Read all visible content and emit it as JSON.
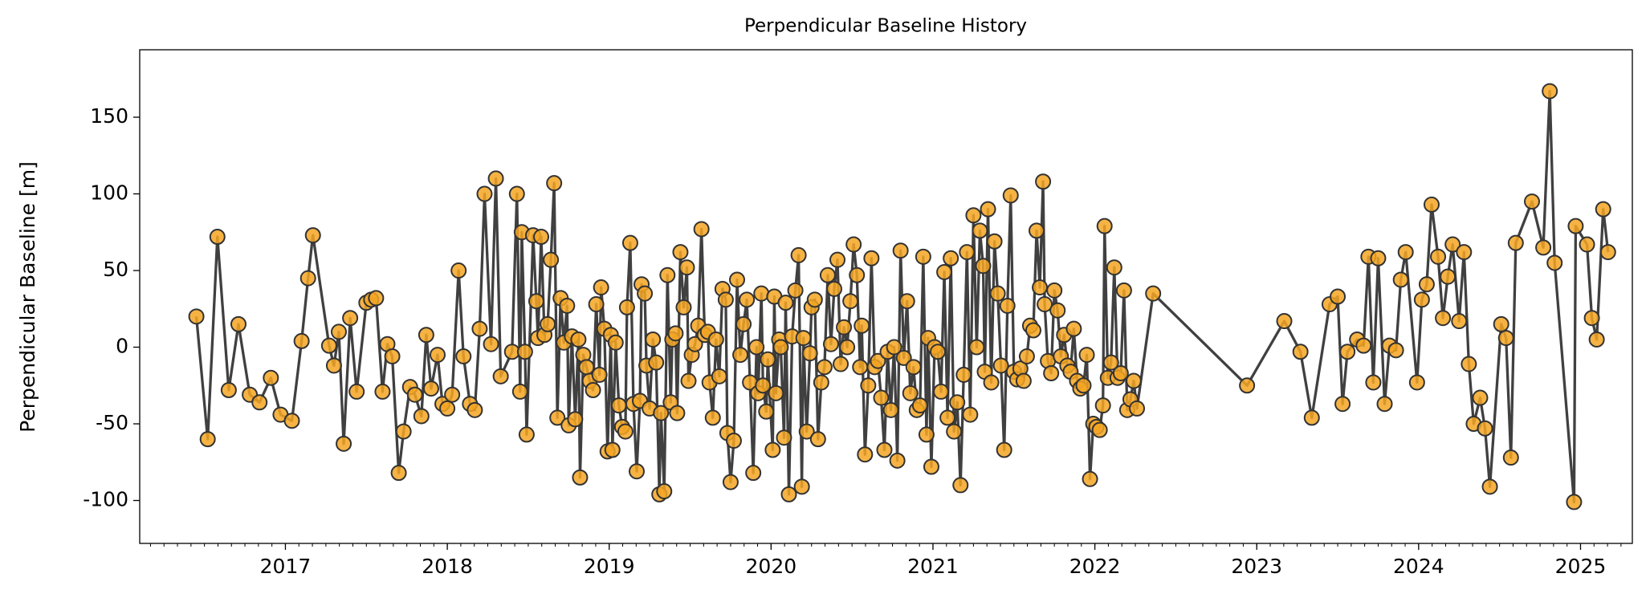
{
  "chart_data": {
    "type": "line",
    "title": "Perpendicular Baseline History",
    "ylabel": "Perpendicular Baseline [m]",
    "line_color": "#404040",
    "marker_color": "#f5a623",
    "marker_edge": "#333333",
    "xlim": [
      2016.1,
      2025.32
    ],
    "xticks": [
      2017,
      2018,
      2019,
      2020,
      2021,
      2022,
      2023,
      2024,
      2025
    ],
    "ylim": [
      -128,
      194
    ],
    "yticks": [
      -100,
      -50,
      0,
      50,
      100,
      150
    ],
    "x": [
      2016.45,
      2016.52,
      2016.58,
      2016.65,
      2016.71,
      2016.78,
      2016.84,
      2016.91,
      2016.97,
      2017.04,
      2017.1,
      2017.14,
      2017.17,
      2017.27,
      2017.3,
      2017.33,
      2017.36,
      2017.4,
      2017.44,
      2017.5,
      2017.53,
      2017.56,
      2017.6,
      2017.63,
      2017.66,
      2017.7,
      2017.73,
      2017.77,
      2017.8,
      2017.84,
      2017.87,
      2017.9,
      2017.94,
      2017.97,
      2018.0,
      2018.03,
      2018.07,
      2018.1,
      2018.14,
      2018.17,
      2018.2,
      2018.23,
      2018.27,
      2018.3,
      2018.33,
      2018.4,
      2018.43,
      2018.45,
      2018.46,
      2018.48,
      2018.49,
      2018.53,
      2018.55,
      2018.56,
      2018.58,
      2018.6,
      2018.62,
      2018.64,
      2018.66,
      2018.68,
      2018.7,
      2018.72,
      2018.74,
      2018.75,
      2018.77,
      2018.79,
      2018.81,
      2018.82,
      2018.84,
      2018.86,
      2018.88,
      2018.9,
      2018.92,
      2018.94,
      2018.95,
      2018.97,
      2018.99,
      2019.01,
      2019.02,
      2019.04,
      2019.06,
      2019.08,
      2019.1,
      2019.11,
      2019.13,
      2019.15,
      2019.17,
      2019.19,
      2019.2,
      2019.22,
      2019.23,
      2019.25,
      2019.27,
      2019.29,
      2019.31,
      2019.32,
      2019.34,
      2019.36,
      2019.38,
      2019.39,
      2019.41,
      2019.42,
      2019.44,
      2019.46,
      2019.48,
      2019.49,
      2019.51,
      2019.53,
      2019.55,
      2019.57,
      2019.59,
      2019.61,
      2019.62,
      2019.64,
      2019.66,
      2019.68,
      2019.7,
      2019.72,
      2019.73,
      2019.75,
      2019.77,
      2019.79,
      2019.81,
      2019.83,
      2019.85,
      2019.87,
      2019.89,
      2019.91,
      2019.92,
      2019.94,
      2019.95,
      2019.97,
      2019.98,
      2020.01,
      2020.02,
      2020.03,
      2020.05,
      2020.06,
      2020.08,
      2020.09,
      2020.11,
      2020.13,
      2020.15,
      2020.17,
      2020.19,
      2020.2,
      2020.22,
      2020.24,
      2020.25,
      2020.27,
      2020.29,
      2020.31,
      2020.33,
      2020.35,
      2020.37,
      2020.39,
      2020.41,
      2020.43,
      2020.45,
      2020.47,
      2020.49,
      2020.51,
      2020.53,
      2020.55,
      2020.56,
      2020.58,
      2020.6,
      2020.62,
      2020.64,
      2020.66,
      2020.68,
      2020.7,
      2020.72,
      2020.74,
      2020.76,
      2020.78,
      2020.8,
      2020.82,
      2020.84,
      2020.86,
      2020.88,
      2020.9,
      2020.92,
      2020.94,
      2020.96,
      2020.97,
      2020.99,
      2021.01,
      2021.03,
      2021.05,
      2021.07,
      2021.09,
      2021.11,
      2021.13,
      2021.15,
      2021.17,
      2021.19,
      2021.21,
      2021.23,
      2021.25,
      2021.27,
      2021.29,
      2021.31,
      2021.32,
      2021.34,
      2021.36,
      2021.38,
      2021.4,
      2021.42,
      2021.44,
      2021.46,
      2021.48,
      2021.5,
      2021.52,
      2021.54,
      2021.56,
      2021.58,
      2021.6,
      2021.62,
      2021.64,
      2021.66,
      2021.68,
      2021.69,
      2021.71,
      2021.73,
      2021.75,
      2021.77,
      2021.79,
      2021.81,
      2021.83,
      2021.85,
      2021.87,
      2021.89,
      2021.91,
      2021.93,
      2021.95,
      2021.97,
      2021.99,
      2022.01,
      2022.03,
      2022.05,
      2022.06,
      2022.08,
      2022.1,
      2022.12,
      2022.14,
      2022.16,
      2022.18,
      2022.2,
      2022.22,
      2022.24,
      2022.26,
      2022.36,
      2022.94,
      2023.17,
      2023.27,
      2023.34,
      2023.45,
      2023.5,
      2023.53,
      2023.56,
      2023.62,
      2023.66,
      2023.69,
      2023.72,
      2023.75,
      2023.79,
      2023.82,
      2023.86,
      2023.89,
      2023.92,
      2023.99,
      2024.02,
      2024.05,
      2024.08,
      2024.12,
      2024.15,
      2024.18,
      2024.21,
      2024.25,
      2024.28,
      2024.31,
      2024.34,
      2024.38,
      2024.41,
      2024.44,
      2024.51,
      2024.54,
      2024.57,
      2024.6,
      2024.7,
      2024.77,
      2024.81,
      2024.84,
      2024.96,
      2024.97,
      2025.04,
      2025.07,
      2025.1,
      2025.14,
      2025.17
    ],
    "values": [
      20,
      -60,
      72,
      -28,
      15,
      -31,
      -36,
      -20,
      -44,
      -48,
      4,
      45,
      73,
      1,
      -12,
      10,
      -63,
      19,
      -29,
      29,
      31,
      32,
      -29,
      2,
      -6,
      -82,
      -55,
      -26,
      -31,
      -45,
      8,
      -27,
      -5,
      -37,
      -40,
      -31,
      50,
      -6,
      -37,
      -41,
      12,
      100,
      2,
      110,
      -19,
      -3,
      100,
      -29,
      75,
      -3,
      -57,
      73,
      30,
      6,
      72,
      8,
      15,
      57,
      107,
      -46,
      32,
      3,
      27,
      -51,
      7,
      -47,
      5,
      -85,
      -5,
      -13,
      -22,
      -28,
      28,
      -18,
      39,
      12,
      -68,
      8,
      -67,
      3,
      -38,
      -52,
      -55,
      26,
      68,
      -37,
      -81,
      -35,
      41,
      35,
      -12,
      -40,
      5,
      -10,
      -96,
      -43,
      -94,
      47,
      -36,
      5,
      9,
      -43,
      62,
      26,
      52,
      -22,
      -5,
      2,
      14,
      77,
      8,
      10,
      -23,
      -46,
      5,
      -19,
      38,
      31,
      -56,
      -88,
      -61,
      44,
      -5,
      15,
      31,
      -23,
      -82,
      0,
      -30,
      35,
      -25,
      -42,
      -8,
      -67,
      33,
      -30,
      5,
      0,
      -59,
      29,
      -96,
      7,
      37,
      60,
      -91,
      6,
      -55,
      -4,
      26,
      31,
      -60,
      -23,
      -13,
      47,
      2,
      38,
      57,
      -11,
      13,
      0,
      30,
      67,
      47,
      -13,
      14,
      -70,
      -25,
      58,
      -13,
      -9,
      -33,
      -67,
      -3,
      -41,
      0,
      -74,
      63,
      -7,
      30,
      -30,
      -13,
      -41,
      -38,
      59,
      -57,
      6,
      -78,
      0,
      -3,
      -29,
      49,
      -46,
      58,
      -55,
      -36,
      -90,
      -18,
      62,
      -44,
      86,
      0,
      76,
      53,
      -16,
      90,
      -23,
      69,
      35,
      -12,
      -67,
      27,
      99,
      -16,
      -21,
      -14,
      -22,
      -6,
      14,
      11,
      76,
      39,
      108,
      28,
      -9,
      -17,
      37,
      24,
      -6,
      8,
      -12,
      -16,
      12,
      -22,
      -27,
      -25,
      -5,
      -86,
      -50,
      -52,
      -54,
      -38,
      79,
      -20,
      -10,
      52,
      -20,
      -17,
      37,
      -41,
      -34,
      -22,
      -40,
      35,
      -25,
      17,
      -3,
      -46,
      28,
      33,
      -37,
      -3,
      5,
      1,
      59,
      -23,
      58,
      -37,
      1,
      -2,
      44,
      62,
      -23,
      31,
      41,
      93,
      59,
      19,
      46,
      67,
      17,
      62,
      -11,
      -50,
      -33,
      -53,
      -91,
      15,
      6,
      -72,
      68,
      95,
      65,
      167,
      55,
      -101,
      79,
      67,
      19,
      5,
      90,
      62
    ]
  }
}
